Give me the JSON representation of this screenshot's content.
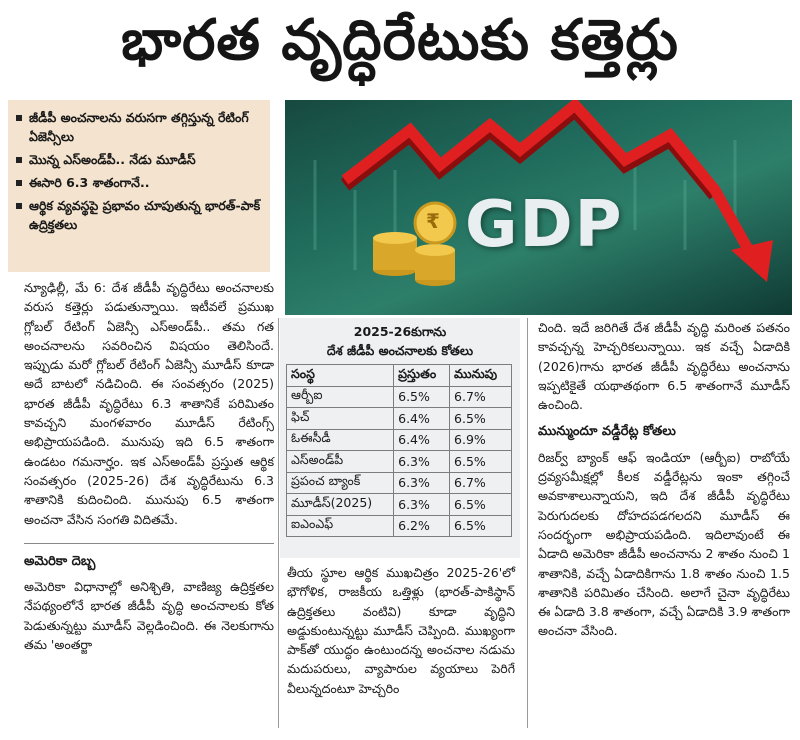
{
  "headline": "భారత వృద్ధిరేటుకు కత్తెర్లు",
  "highlights": [
    "జీడీపీ అంచనాలను వరుసగా తగ్గిస్తున్న రేటింగ్‌ ఏజెన్సీలు",
    "మొన్న ఎస్‌అండ్‌పీ.. నేడు మూడీస్‌",
    "ఈసారి 6.3 శాతంగానే..",
    "ఆర్థిక వ్యవస్థపై ప్రభావం చూపుతున్న భారత్‌-పాక్‌ ఉద్రిక్తతలు"
  ],
  "photo": {
    "label": "GDP",
    "currency_symbol": "₹"
  },
  "col1": {
    "para1": "న్యూఢిల్లీ, మే 6: దేశ జీడీపీ వృద్ధిరేటు అంచనాలకు వరుస కత్తెర్లు పడుతున్నాయి. ఇటీవలే ప్రముఖ గ్లోబల్‌ రేటింగ్‌ ఏజెన్సీ ఎస్‌అండ్‌పీ.. తమ గత అంచనాలను సవరించిన విషయం తెలిసిందే. ఇప్పుడు మరో గ్లోబల్‌ రేటింగ్‌ ఏజెన్సీ మూడీస్‌ కూడా అదే బాటలో నడిచింది. ఈ సంవత్సరం (2025) భారత జీడీపీ వృద్ధిరేటు 6.3 శాతానికే పరిమితం కావచ్చని మంగళవారం మూడీస్‌ రేటింగ్స్‌ అభిప్రాయపడింది. మునుపు ఇది 6.5 శాతంగా ఉండటం గమనార్హం. ఇక ఎస్‌అండ్‌పీ ప్రస్తుత ఆర్థిక సంవత్సరం (2025-26) దేశ వృద్ధిరేటును 6.3 శాతానికి కుదించింది. మునుపు 6.5 శాతంగా అంచనా వేసిన సంగతి విదితమే.",
    "subhead": "అమెరికా దెబ్బ",
    "para2": "అమెరికా విధానాల్లో అనిశ్చితి, వాణిజ్య ఉద్రిక్తతల నేపథ్యంలోనే భారత జీడీపీ వృద్ధి అంచనాలకు కోత పెడుతున్నట్టు మూడీస్‌ వెల్లడించింది. ఈ నెలకుగాను తమ 'అంతర్జా"
  },
  "table": {
    "title_line1": "2025-26కుగాను",
    "title_line2": "దేశ జీడీపీ అంచనాలకు కోతలు",
    "headers": [
      "సంస్థ",
      "ప్రస్తుతం",
      "మునుపు"
    ],
    "rows": [
      [
        "ఆర్బీఐ",
        "6.5%",
        "6.7%"
      ],
      [
        "ఫిచ్‌",
        "6.4%",
        "6.5%"
      ],
      [
        "ఓఈసీడీ",
        "6.4%",
        "6.9%"
      ],
      [
        "ఎస్‌అండ్‌పీ",
        "6.3%",
        "6.5%"
      ],
      [
        "ప్రపంచ బ్యాంక్‌",
        "6.3%",
        "6.7%"
      ],
      [
        "మూడీస్‌(2025)",
        "6.3%",
        "6.5%"
      ],
      [
        "ఐఎంఎఫ్‌",
        "6.2%",
        "6.5%"
      ]
    ]
  },
  "col2": {
    "para": "తీయ స్థూల ఆర్థిక ముఖచిత్రం 2025-26'లో భౌగోళిక, రాజకీయ ఒత్తిళ్లు (భారత్‌-పాకిస్థాన్‌ ఉద్రిక్తతలు వంటివి) కూడా వృద్ధిని అడ్డుకుంటున్నట్టు మూడీస్‌ చెప్పింది. ముఖ్యంగా పాక్‌తో యుద్ధం ఉంటుందన్న అంచనాల నడుమ మదుపరులు, వ్యాపారుల వ్యయాలు పెరిగే వీలున్నదంటూ హెచ్చరిం"
  },
  "col3": {
    "para1": "చింది. ఇదే జరిగితే దేశ జీడీపీ వృద్ధి మరింత పతనం కావచ్చన్న హెచ్చరికలున్నాయి. ఇక వచ్చే ఏడాదికి (2026)గాను భారత జీడీపీ వృద్ధిరేటు అంచనాను ఇప్పటికైతే యథాతథంగా 6.5 శాతంగానే మూడీస్‌ ఉంచింది.",
    "subhead": "మున్ముందూ వడ్డీరేట్ల కోతలు",
    "para2": "రిజర్వ్‌ బ్యాంక్‌ ఆఫ్‌ ఇండియా (ఆర్బీఐ) రాబోయే ద్రవ్యసమీక్షల్లో కీలక వడ్డీరేట్లను ఇంకా తగ్గించే అవకాశాలున్నాయని, ఇది దేశ జీడీపీ వృద్ధిరేటు పెరుగుదలకు దోహదపడగలదని మూడీస్‌ ఈ సందర్భంగా అభిప్రాయపడింది. ఇదిలావుంటే ఈ ఏడాది అమెరికా జీడీపీ అంచనాను 2 శాతం నుంచి 1 శాతానికి, వచ్చే ఏడాదికిగాను 1.8 శాతం నుంచి 1.5 శాతానికి పరిమితం చేసింది. అలాగే చైనా వృద్ధిరేటు ఈ ఏడాది 3.8 శాతంగా, వచ్చే ఏడాదికి 3.9 శాతంగా అంచనా వేసింది."
  }
}
